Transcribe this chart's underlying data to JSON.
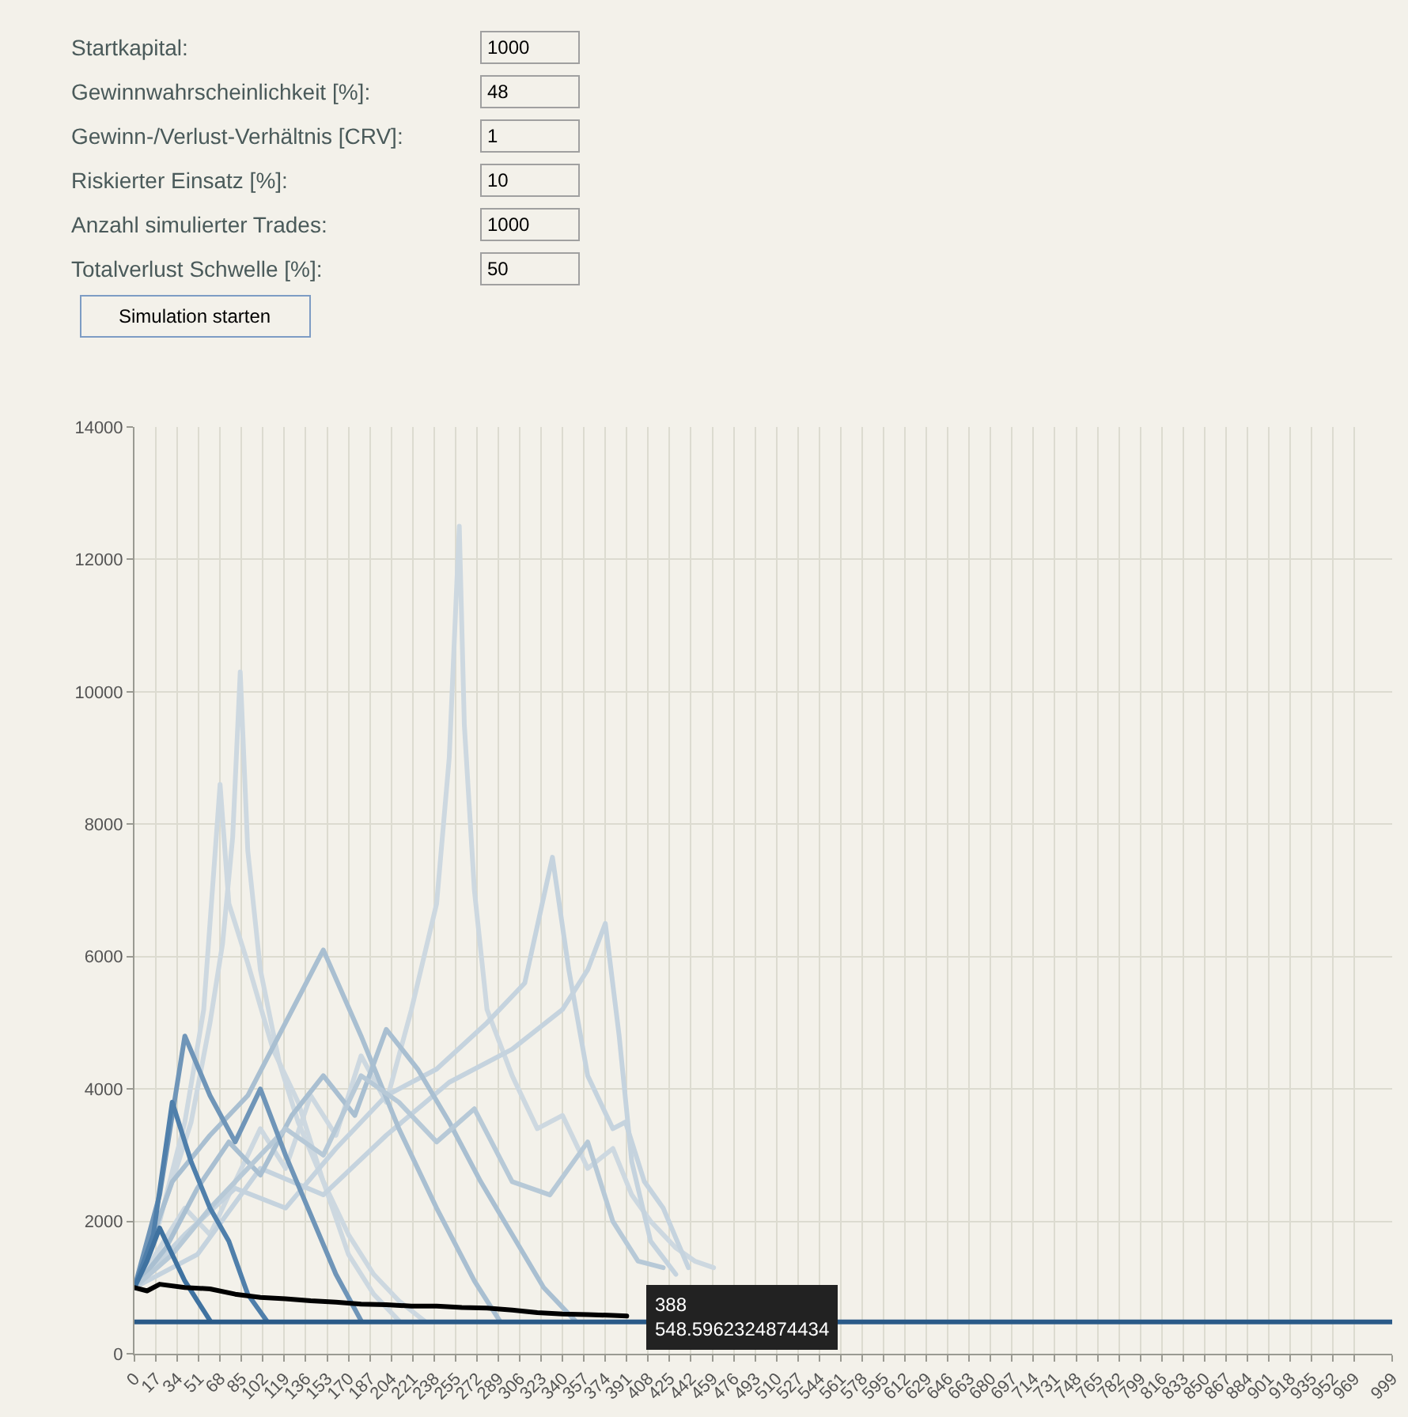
{
  "chart_data": {
    "type": "line",
    "marker": "none",
    "line_style": "solid",
    "grid": true,
    "xlim": [
      0,
      999
    ],
    "ylim": [
      0,
      14000
    ],
    "xticks": [
      0,
      17,
      34,
      51,
      68,
      85,
      102,
      119,
      136,
      153,
      170,
      187,
      204,
      221,
      238,
      255,
      272,
      289,
      306,
      323,
      340,
      357,
      374,
      391,
      408,
      425,
      442,
      459,
      476,
      493,
      510,
      527,
      544,
      561,
      578,
      595,
      612,
      629,
      646,
      663,
      680,
      697,
      714,
      731,
      748,
      765,
      782,
      799,
      816,
      833,
      850,
      867,
      884,
      901,
      918,
      935,
      952,
      969,
      999
    ],
    "yticks": [
      0,
      2000,
      4000,
      6000,
      8000,
      10000,
      12000,
      14000
    ],
    "annotations": [
      "Startkapital:",
      "Gewinnwahrscheinlichkeit [%]:",
      "Gewinn-/Verlust-Verhältnis [CRV]:",
      "Riskierter Einsatz [%]:",
      "Anzahl simulierter Trades:",
      "Totalverlust Schwelle [%]:",
      "1000",
      "48",
      "1",
      "10",
      "1000",
      "50",
      "Simulation starten",
      {
        "text": "388\n548.5962324874434",
        "x": 388,
        "y": 548.6
      }
    ],
    "series": [
      {
        "color": "#cdd8e0",
        "x": [
          0,
          20,
          40,
          60,
          80,
          100,
          120,
          140,
          160,
          180,
          200,
          220,
          240,
          250,
          258,
          262,
          270,
          280,
          300,
          320,
          340,
          360,
          380,
          395,
          410,
          430,
          445,
          460
        ],
        "values": [
          1000,
          1600,
          2200,
          1800,
          2600,
          3400,
          2800,
          3900,
          3300,
          4500,
          3800,
          5200,
          6800,
          9000,
          12500,
          9500,
          7000,
          5200,
          4200,
          3400,
          3600,
          2800,
          3100,
          2400,
          2000,
          1600,
          1400,
          1300
        ]
      },
      {
        "color": "#cdd8e0",
        "x": [
          0,
          15,
          30,
          45,
          60,
          70,
          78,
          84,
          90,
          100,
          115,
          130,
          150,
          170,
          190,
          210,
          230
        ],
        "values": [
          1000,
          1800,
          2600,
          3500,
          5000,
          6200,
          7800,
          10300,
          7600,
          5800,
          4400,
          3500,
          2600,
          1800,
          1200,
          800,
          500
        ]
      },
      {
        "color": "#cdd8e0",
        "x": [
          0,
          20,
          40,
          55,
          68,
          75,
          90,
          110,
          130,
          150,
          170,
          190,
          210
        ],
        "values": [
          1000,
          2000,
          3500,
          5200,
          8600,
          6800,
          5900,
          4600,
          3800,
          2600,
          1500,
          900,
          500
        ]
      },
      {
        "color": "#c5d3de",
        "x": [
          0,
          40,
          80,
          120,
          160,
          200,
          240,
          280,
          310,
          332,
          345,
          360,
          380,
          390,
          405,
          420,
          440
        ],
        "values": [
          1000,
          1800,
          2500,
          2200,
          3100,
          3900,
          4300,
          5000,
          5600,
          7500,
          5800,
          4200,
          3400,
          3500,
          2600,
          2200,
          1300
        ]
      },
      {
        "color": "#c5d3de",
        "x": [
          0,
          50,
          100,
          150,
          200,
          250,
          300,
          340,
          360,
          374,
          385,
          395,
          410,
          430
        ],
        "values": [
          1000,
          1500,
          2800,
          2400,
          3300,
          4100,
          4600,
          5200,
          5800,
          6500,
          4800,
          2900,
          1700,
          1200
        ]
      },
      {
        "color": "#a9bfd1",
        "x": [
          0,
          30,
          60,
          90,
          120,
          150,
          180,
          210,
          240,
          270,
          290
        ],
        "values": [
          1000,
          2600,
          3300,
          3900,
          5000,
          6100,
          4800,
          3400,
          2200,
          1100,
          500
        ]
      },
      {
        "color": "#a9bfd1",
        "x": [
          0,
          25,
          50,
          75,
          100,
          125,
          150,
          175,
          200,
          225,
          250,
          275,
          300,
          325,
          350
        ],
        "values": [
          1000,
          1600,
          2500,
          3200,
          2700,
          3600,
          4200,
          3600,
          4900,
          4300,
          3500,
          2600,
          1800,
          1000,
          500
        ]
      },
      {
        "color": "#b7c9d7",
        "x": [
          0,
          30,
          60,
          90,
          120,
          150,
          180,
          210,
          240,
          270,
          300,
          330,
          360,
          380,
          400,
          420
        ],
        "values": [
          1000,
          1500,
          2200,
          2800,
          3400,
          3000,
          4200,
          3800,
          3200,
          3700,
          2600,
          2400,
          3200,
          2000,
          1400,
          1300
        ]
      },
      {
        "color": "#6f95b8",
        "x": [
          0,
          20,
          40,
          60,
          80,
          100,
          120,
          140,
          160,
          180
        ],
        "values": [
          1000,
          2400,
          4800,
          3900,
          3200,
          4000,
          3000,
          2100,
          1200,
          500
        ]
      },
      {
        "color": "#4f7fab",
        "x": [
          0,
          15,
          30,
          45,
          60,
          75,
          90,
          105
        ],
        "values": [
          1000,
          1800,
          3800,
          2900,
          2200,
          1700,
          900,
          500
        ]
      },
      {
        "color": "#3f72a0",
        "x": [
          0,
          10,
          20,
          30,
          40,
          50,
          60
        ],
        "values": [
          1000,
          1400,
          1900,
          1500,
          1100,
          800,
          500
        ]
      },
      {
        "color": "#2a5a88",
        "x": [
          0,
          999
        ],
        "values": [
          480,
          480
        ]
      },
      {
        "color": "#000000",
        "x": [
          0,
          10,
          20,
          40,
          60,
          80,
          100,
          120,
          140,
          160,
          180,
          200,
          220,
          240,
          260,
          280,
          300,
          320,
          340,
          360,
          380,
          391
        ],
        "values": [
          1000,
          950,
          1050,
          1000,
          980,
          900,
          850,
          830,
          800,
          780,
          750,
          740,
          720,
          720,
          700,
          690,
          660,
          620,
          600,
          590,
          580,
          570
        ]
      }
    ]
  }
}
